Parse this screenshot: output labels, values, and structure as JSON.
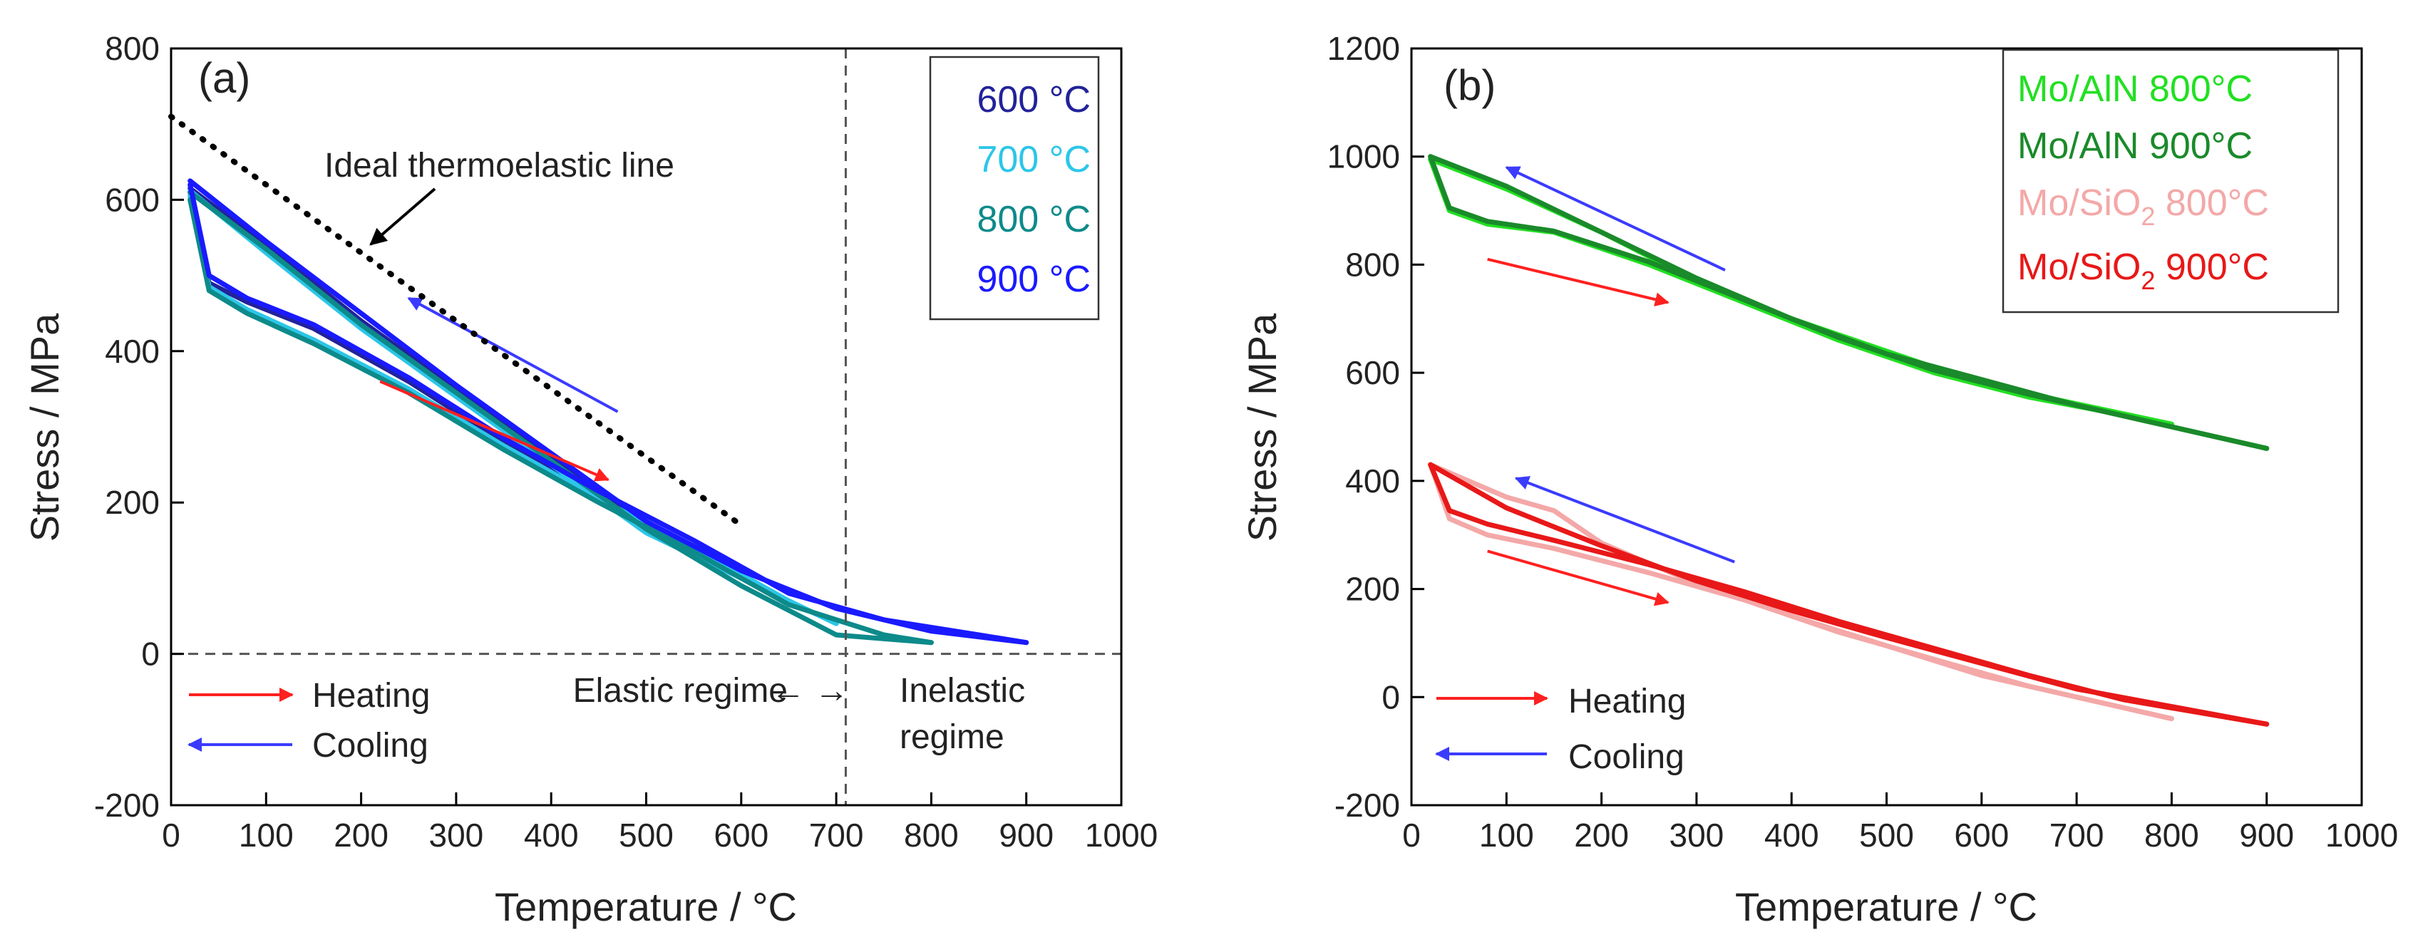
{
  "chart_data": [
    {
      "type": "line",
      "panel_label": "(a)",
      "xlabel": "Temperature / °C",
      "ylabel": "Stress / MPa",
      "xlim": [
        0,
        1000
      ],
      "ylim": [
        -200,
        800
      ],
      "xticks": [
        0,
        100,
        200,
        300,
        400,
        500,
        600,
        700,
        800,
        900,
        1000
      ],
      "yticks": [
        -200,
        0,
        200,
        400,
        600,
        800
      ],
      "legend": {
        "position": "top-right"
      },
      "series": [
        {
          "name": "600 °C",
          "color": "#22229a",
          "heating": {
            "x": [
              20,
              40,
              80,
              150,
              250,
              350,
              450,
              550,
              600
            ],
            "y": [
              610,
              490,
              465,
              430,
              360,
              280,
              210,
              140,
              100
            ]
          },
          "cooling": {
            "x": [
              600,
              500,
              400,
              300,
              200,
              100,
              20
            ],
            "y": [
              100,
              170,
              260,
              350,
              440,
              540,
              615
            ]
          }
        },
        {
          "name": "700 °C",
          "color": "#2cc6e8",
          "heating": {
            "x": [
              20,
              40,
              80,
              150,
              250,
              350,
              450,
              550,
              650,
              700
            ],
            "y": [
              605,
              485,
              455,
              415,
              350,
              275,
              205,
              140,
              70,
              40
            ]
          },
          "cooling": {
            "x": [
              700,
              600,
              500,
              400,
              300,
              200,
              100,
              20
            ],
            "y": [
              40,
              100,
              160,
              250,
              340,
              430,
              530,
              612
            ]
          }
        },
        {
          "name": "800 °C",
          "color": "#0d8a8a",
          "heating": {
            "x": [
              20,
              40,
              80,
              150,
              250,
              350,
              450,
              550,
              650,
              750,
              800
            ],
            "y": [
              600,
              480,
              450,
              410,
              345,
              270,
              200,
              135,
              65,
              25,
              15
            ]
          },
          "cooling": {
            "x": [
              800,
              700,
              600,
              500,
              400,
              300,
              200,
              100,
              20
            ],
            "y": [
              15,
              25,
              90,
              165,
              255,
              345,
              435,
              535,
              610
            ]
          }
        },
        {
          "name": "900 °C",
          "color": "#1a1aff",
          "heating": {
            "x": [
              20,
              40,
              80,
              150,
              250,
              350,
              450,
              550,
              650,
              750,
              850,
              900
            ],
            "y": [
              620,
              500,
              470,
              435,
              365,
              285,
              215,
              150,
              80,
              45,
              25,
              15
            ]
          },
          "cooling": {
            "x": [
              900,
              800,
              700,
              600,
              500,
              400,
              300,
              200,
              100,
              20
            ],
            "y": [
              15,
              30,
              60,
              110,
              175,
              265,
              355,
              450,
              545,
              625
            ]
          }
        }
      ],
      "reference_line": {
        "name": "Ideal thermoelastic line",
        "x": [
          0,
          600
        ],
        "y": [
          710,
          170
        ]
      },
      "vertical_line_x": 710,
      "horizontal_line_y": 0,
      "annotations": {
        "thermoelastic": "Ideal thermoelastic line",
        "elastic": "Elastic regime",
        "inelastic_1": "Inelastic",
        "inelastic_2": "regime",
        "heating": "Heating",
        "cooling": "Cooling"
      },
      "arrows": {
        "heating": {
          "x": [
            220,
            460
          ],
          "y": [
            360,
            230
          ],
          "color": "#ff2020"
        },
        "cooling": {
          "x": [
            470,
            250
          ],
          "y": [
            320,
            470
          ],
          "color": "#3b3bff"
        }
      }
    },
    {
      "type": "line",
      "panel_label": "(b)",
      "xlabel": "Temperature / °C",
      "ylabel": "Stress / MPa",
      "xlim": [
        0,
        1000
      ],
      "ylim": [
        -200,
        1200
      ],
      "xticks": [
        0,
        100,
        200,
        300,
        400,
        500,
        600,
        700,
        800,
        900,
        1000
      ],
      "yticks": [
        -200,
        0,
        200,
        400,
        600,
        800,
        1000,
        1200
      ],
      "legend": {
        "position": "top-right"
      },
      "series": [
        {
          "name": "Mo/AlN 800°C",
          "color": "#22e022",
          "heating": {
            "x": [
              20,
              40,
              80,
              150,
              250,
              350,
              450,
              550,
              650,
              800
            ],
            "y": [
              995,
              900,
              875,
              860,
              800,
              730,
              660,
              600,
              555,
              505
            ]
          },
          "cooling": {
            "x": [
              800,
              600,
              400,
              300,
              200,
              100,
              20
            ],
            "y": [
              505,
              580,
              700,
              770,
              860,
              940,
              995
            ]
          }
        },
        {
          "name": "Mo/AlN 900°C",
          "color": "#1a8a2a",
          "heating": {
            "x": [
              20,
              40,
              80,
              150,
              250,
              350,
              450,
              550,
              650,
              750,
              900
            ],
            "y": [
              1000,
              905,
              880,
              862,
              805,
              735,
              665,
              605,
              560,
              520,
              460
            ]
          },
          "cooling": {
            "x": [
              900,
              700,
              500,
              400,
              300,
              200,
              100,
              20
            ],
            "y": [
              460,
              540,
              635,
              700,
              775,
              860,
              945,
              1000
            ]
          }
        },
        {
          "name": "Mo/SiO₂ 800°C",
          "color": "#f4a8a8",
          "heating": {
            "x": [
              20,
              40,
              80,
              150,
              250,
              350,
              450,
              550,
              650,
              800
            ],
            "y": [
              430,
              330,
              300,
              275,
              230,
              180,
              120,
              70,
              20,
              -40
            ]
          },
          "cooling": {
            "x": [
              800,
              600,
              400,
              300,
              200,
              150,
              100,
              20
            ],
            "y": [
              -40,
              40,
              150,
              210,
              285,
              345,
              370,
              430
            ]
          }
        },
        {
          "name": "Mo/SiO₂ 900°C",
          "color": "#e81818",
          "heating": {
            "x": [
              20,
              40,
              80,
              150,
              250,
              350,
              450,
              550,
              650,
              750,
              900
            ],
            "y": [
              430,
              345,
              320,
              290,
              245,
              195,
              140,
              90,
              40,
              -5,
              -50
            ]
          },
          "cooling": {
            "x": [
              900,
              700,
              500,
              400,
              300,
              200,
              100,
              20
            ],
            "y": [
              -50,
              15,
              110,
              160,
              215,
              280,
              350,
              430
            ]
          }
        }
      ],
      "annotations": {
        "heating": "Heating",
        "cooling": "Cooling"
      },
      "arrows": {
        "heating_upper": {
          "x": [
            80,
            270
          ],
          "y": [
            810,
            730
          ],
          "color": "#ff2020"
        },
        "cooling_upper": {
          "x": [
            330,
            100
          ],
          "y": [
            790,
            980
          ],
          "color": "#3b3bff"
        },
        "heating_lower": {
          "x": [
            80,
            270
          ],
          "y": [
            270,
            175
          ],
          "color": "#ff2020"
        },
        "cooling_lower": {
          "x": [
            340,
            110
          ],
          "y": [
            250,
            405
          ],
          "color": "#3b3bff"
        }
      }
    }
  ],
  "legend_b": {
    "mo_aln_800": "Mo/AlN 800°C",
    "mo_aln_900": "Mo/AlN 900°C",
    "mo_sio2_800_prefix": "Mo/SiO",
    "mo_sio2_800_sub": "2",
    "mo_sio2_800_suffix": " 800°C",
    "mo_sio2_900_prefix": "Mo/SiO",
    "mo_sio2_900_sub": "2",
    "mo_sio2_900_suffix": " 900°C"
  }
}
